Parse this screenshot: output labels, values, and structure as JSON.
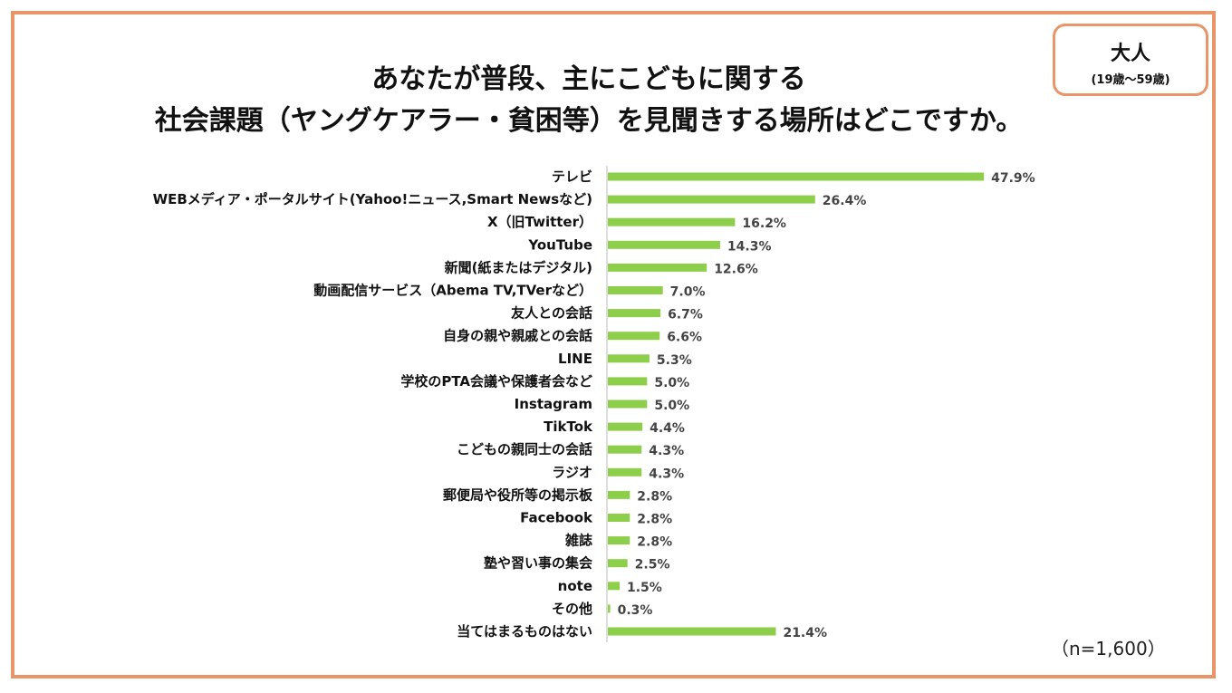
{
  "badge": {
    "title": "大人",
    "subtitle": "(19歳～59歳)"
  },
  "note": "（n=1,600）",
  "colors": {
    "bar": "#8dcf4a",
    "frame": "#e9956a"
  },
  "chart_data": {
    "type": "bar",
    "orientation": "horizontal",
    "title": "あなたが普段、主にこどもに関する社会課題（ヤングケアラー・貧困等）を見聞きする場所はどこですか。",
    "title_lines": [
      "あなたが普段、主にこどもに関する",
      "社会課題（ヤングケアラー・貧困等）を見聞きする場所はどこですか。"
    ],
    "xlabel": "",
    "ylabel": "",
    "xlim": [
      0,
      50
    ],
    "unit": "%",
    "grid": false,
    "categories": [
      "テレビ",
      "WEBメディア・ポータルサイト(Yahoo!ニュース,Smart Newsなど)",
      "X（旧Twitter）",
      "YouTube",
      "新聞(紙またはデジタル)",
      "動画配信サービス（Abema TV,TVerなど）",
      "友人との会話",
      "自身の親や親戚との会話",
      "LINE",
      "学校のPTA会議や保護者会など",
      "Instagram",
      "TikTok",
      "こどもの親同士の会話",
      "ラジオ",
      "郵便局や役所等の掲示板",
      "Facebook",
      "雑誌",
      "塾や習い事の集会",
      "note",
      "その他",
      "当てはまるものはない"
    ],
    "values": [
      47.9,
      26.4,
      16.2,
      14.3,
      12.6,
      7.0,
      6.7,
      6.6,
      5.3,
      5.0,
      5.0,
      4.4,
      4.3,
      4.3,
      2.8,
      2.8,
      2.8,
      2.5,
      1.5,
      0.3,
      21.4
    ],
    "value_labels": [
      "47.9%",
      "26.4%",
      "16.2%",
      "14.3%",
      "12.6%",
      "7.0%",
      "6.7%",
      "6.6%",
      "5.3%",
      "5.0%",
      "5.0%",
      "4.4%",
      "4.3%",
      "4.3%",
      "2.8%",
      "2.8%",
      "2.8%",
      "2.5%",
      "1.5%",
      "0.3%",
      "21.4%"
    ]
  }
}
